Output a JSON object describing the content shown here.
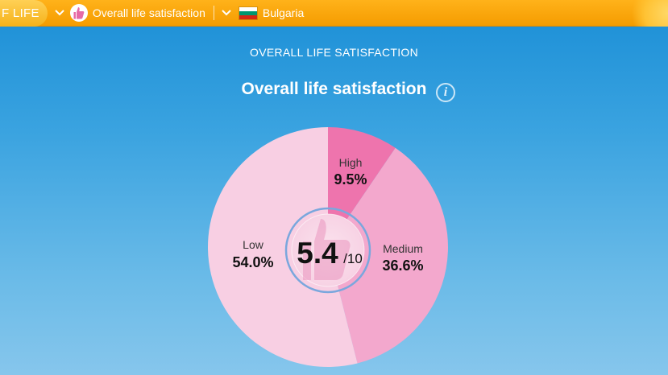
{
  "breadcrumb": {
    "home_label": "F LIFE",
    "topic_label": "Overall life satisfaction",
    "country_label": "Bulgaria"
  },
  "header": {
    "section_title": "OVERALL LIFE SATISFACTION",
    "chart_title": "Overall life satisfaction",
    "info_icon_text": "i"
  },
  "colors": {
    "topbar": "#f59c00",
    "background": "#3aa3e0",
    "low": "#f8cfe3",
    "medium": "#f3a8cd",
    "high": "#ee74ad"
  },
  "icons": [
    "chevron-down-icon",
    "thumb-up-icon",
    "bulgaria-flag-icon",
    "info-icon"
  ],
  "chart_data": {
    "type": "pie",
    "title": "Overall life satisfaction",
    "slices": [
      {
        "label": "High",
        "value": 9.5,
        "display": "9.5%",
        "color": "#ee74ad"
      },
      {
        "label": "Medium",
        "value": 36.6,
        "display": "36.6%",
        "color": "#f3a8cd"
      },
      {
        "label": "Low",
        "value": 54.0,
        "display": "54.0%",
        "color": "#f8cfe3"
      }
    ],
    "center_score": "5.4",
    "center_scale": "/10"
  }
}
